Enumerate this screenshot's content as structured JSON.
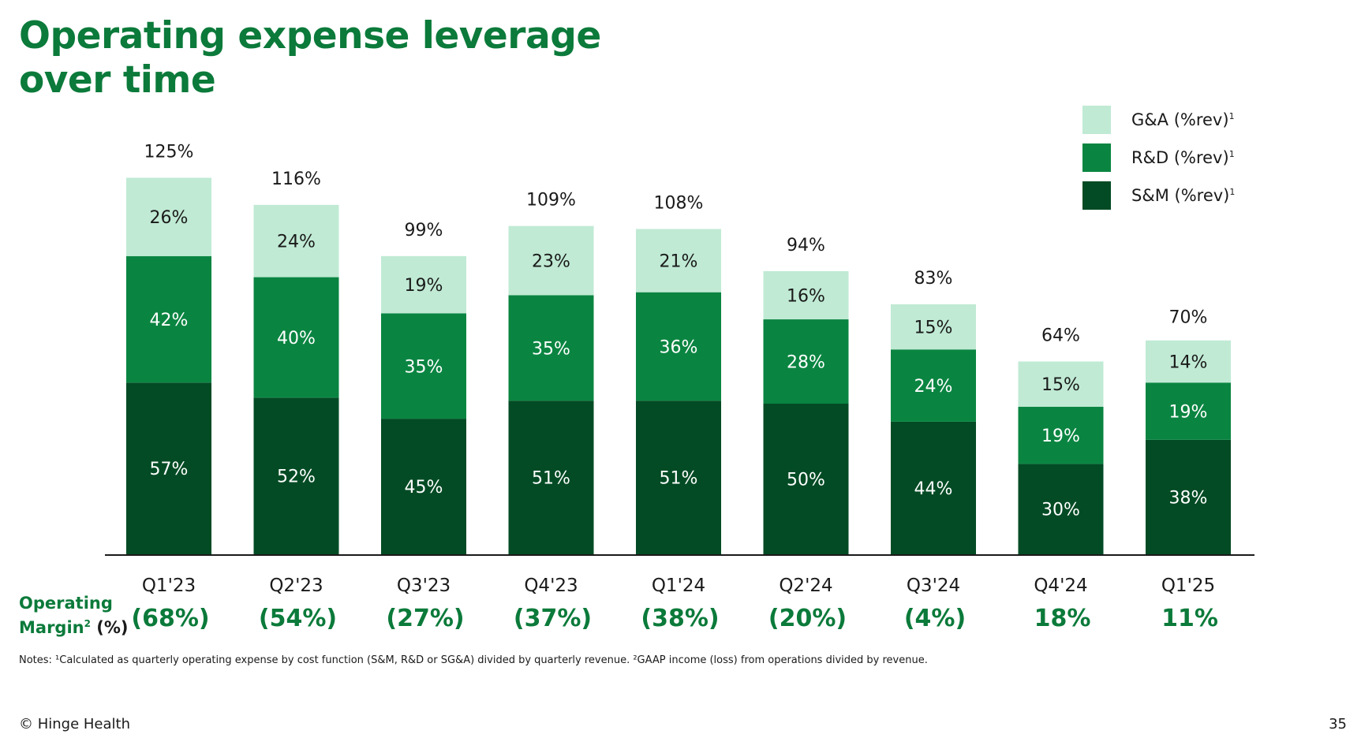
{
  "slide": {
    "title_line1": "Operating expense leverage",
    "title_line2": "over time",
    "notes": "Notes: ¹Calculated as quarterly operating expense by cost function (S&M, R&D or SG&A) divided by quarterly revenue. ²GAAP income (loss) from operations divided by revenue.",
    "footer": "© Hinge Health",
    "page_number": "35"
  },
  "operating_margin": {
    "label_line1": "Operating",
    "label_line2": "Margin",
    "label_sup": "2",
    "label_tail": " (%)"
  },
  "legend": {
    "items": [
      {
        "label": "G&A (%rev)",
        "sup": "1",
        "color": "#c0ead4"
      },
      {
        "label": "R&D (%rev)",
        "sup": "1",
        "color": "#0a8541"
      },
      {
        "label": "S&M (%rev)",
        "sup": "1",
        "color": "#024b24"
      }
    ]
  },
  "colors": {
    "title": "#0b7a3a",
    "ga": "#c0ead4",
    "rd": "#0a8541",
    "sm": "#024b24",
    "margin_text": "#0b7a3a"
  },
  "chart_data": {
    "type": "bar",
    "stacked": true,
    "categories": [
      "Q1'23",
      "Q2'23",
      "Q3'23",
      "Q4'23",
      "Q1'24",
      "Q2'24",
      "Q3'24",
      "Q4'24",
      "Q1'25"
    ],
    "series": [
      {
        "name": "S&M (%rev)",
        "values": [
          57,
          52,
          45,
          51,
          51,
          50,
          44,
          30,
          38
        ],
        "labels": [
          "57%",
          "52%",
          "45%",
          "51%",
          "51%",
          "50%",
          "44%",
          "30%",
          "38%"
        ]
      },
      {
        "name": "R&D (%rev)",
        "values": [
          42,
          40,
          35,
          35,
          36,
          28,
          24,
          19,
          19
        ],
        "labels": [
          "42%",
          "40%",
          "35%",
          "35%",
          "36%",
          "28%",
          "24%",
          "19%",
          "19%"
        ]
      },
      {
        "name": "G&A (%rev)",
        "values": [
          26,
          24,
          19,
          23,
          21,
          16,
          15,
          15,
          14
        ],
        "labels": [
          "26%",
          "24%",
          "19%",
          "23%",
          "21%",
          "16%",
          "15%",
          "15%",
          "14%"
        ]
      }
    ],
    "totals": [
      125,
      116,
      99,
      109,
      108,
      94,
      83,
      64,
      70
    ],
    "total_labels": [
      "125%",
      "116%",
      "99%",
      "109%",
      "108%",
      "94%",
      "83%",
      "64%",
      "70%"
    ],
    "operating_margin": [
      "(68%)",
      "(54%)",
      "(27%)",
      "(37%)",
      "(38%)",
      "(20%)",
      "(4%)",
      "18%",
      "11%"
    ],
    "legend": "top-right",
    "grid": false
  }
}
